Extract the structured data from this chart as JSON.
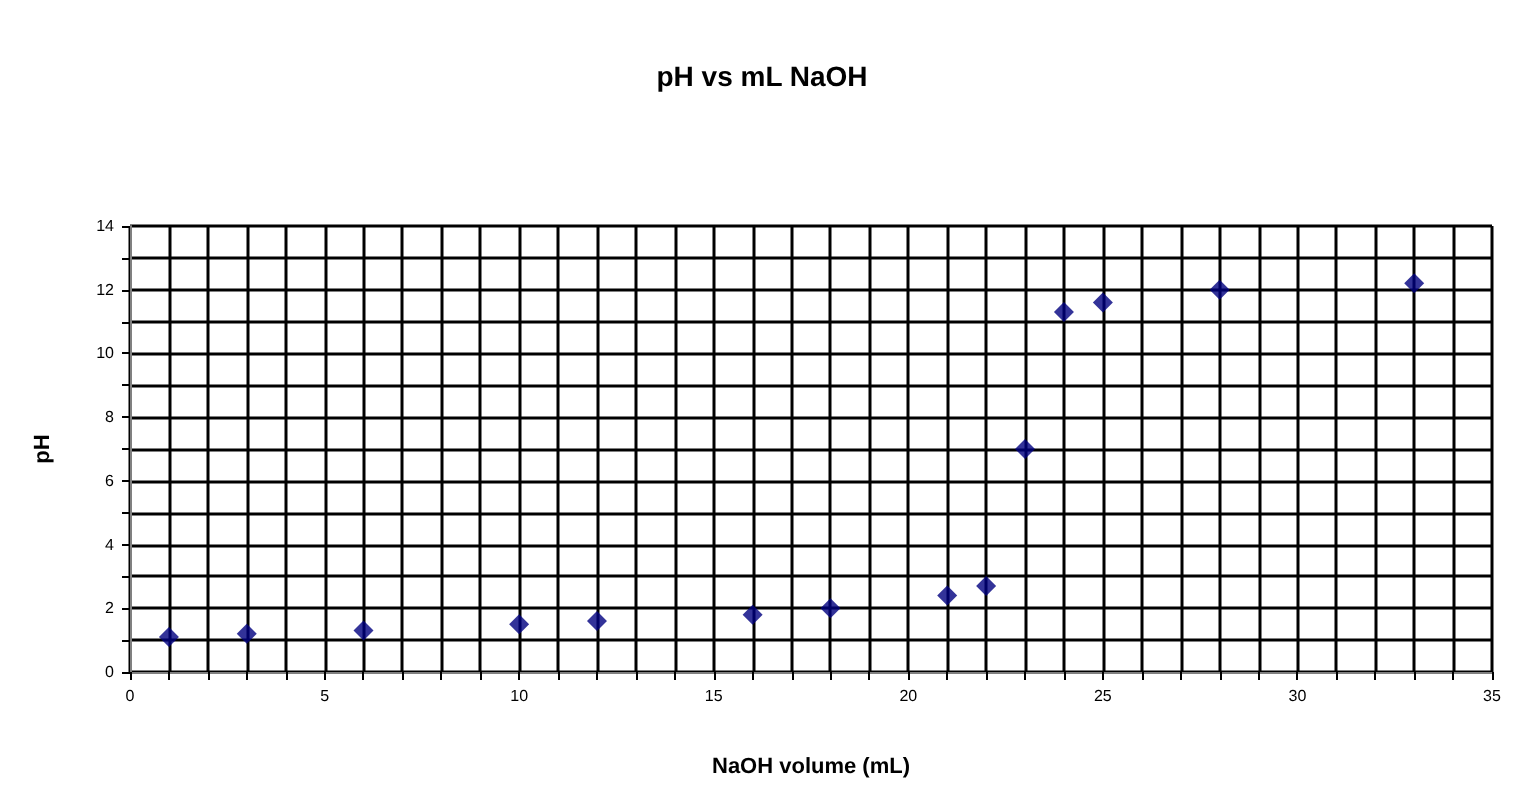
{
  "chart_data": {
    "type": "scatter",
    "title": "pH vs mL NaOH",
    "xlabel": "NaOH volume (mL)",
    "ylabel": "pH",
    "x": [
      1,
      3,
      6,
      10,
      12,
      16,
      18,
      21,
      22,
      23,
      24,
      25,
      28,
      33
    ],
    "series": [
      {
        "color": "#000080",
        "values": [
          1.1,
          1.2,
          1.3,
          1.5,
          1.6,
          1.8,
          2.0,
          2.4,
          2.7,
          7.0,
          11.3,
          11.6,
          12.0,
          12.2
        ]
      }
    ],
    "xlim": [
      0,
      35
    ],
    "xticks": [
      0,
      {
        "value": 1,
        "label": null
      },
      {
        "value": 2,
        "label": null
      },
      {
        "value": 3,
        "label": null
      },
      {
        "value": 4,
        "label": null
      },
      5,
      {
        "value": 6,
        "label": null
      },
      {
        "value": 7,
        "label": null
      },
      {
        "value": 8,
        "label": null
      },
      {
        "value": 9,
        "label": null
      },
      10,
      {
        "value": 11,
        "label": null
      },
      {
        "value": 12,
        "label": null
      },
      {
        "value": 13,
        "label": null
      },
      {
        "value": 14,
        "label": null
      },
      15,
      {
        "value": 16,
        "label": null
      },
      {
        "value": 17,
        "label": null
      },
      {
        "value": 18,
        "label": null
      },
      {
        "value": 19,
        "label": null
      },
      20,
      {
        "value": 21,
        "label": null
      },
      {
        "value": 22,
        "label": null
      },
      {
        "value": 23,
        "label": null
      },
      {
        "value": 24,
        "label": null
      },
      25,
      {
        "value": 26,
        "label": null
      },
      {
        "value": 27,
        "label": null
      },
      {
        "value": 28,
        "label": null
      },
      {
        "value": 29,
        "label": null
      },
      30,
      {
        "value": 31,
        "label": null
      },
      {
        "value": 32,
        "label": null
      },
      {
        "value": 33,
        "label": null
      },
      {
        "value": 34,
        "label": null
      },
      35
    ],
    "ylim": [
      0,
      14
    ],
    "yticks": [
      0,
      {
        "value": 1,
        "label": null
      },
      2,
      {
        "value": 3,
        "label": null
      },
      4,
      {
        "value": 5,
        "label": null
      },
      6,
      {
        "value": 7,
        "label": null
      },
      8,
      {
        "value": 9,
        "label": null
      },
      10,
      {
        "value": 11,
        "label": null
      },
      12,
      {
        "value": 13,
        "label": null
      },
      14
    ],
    "grid": true,
    "marker": "diamond"
  }
}
